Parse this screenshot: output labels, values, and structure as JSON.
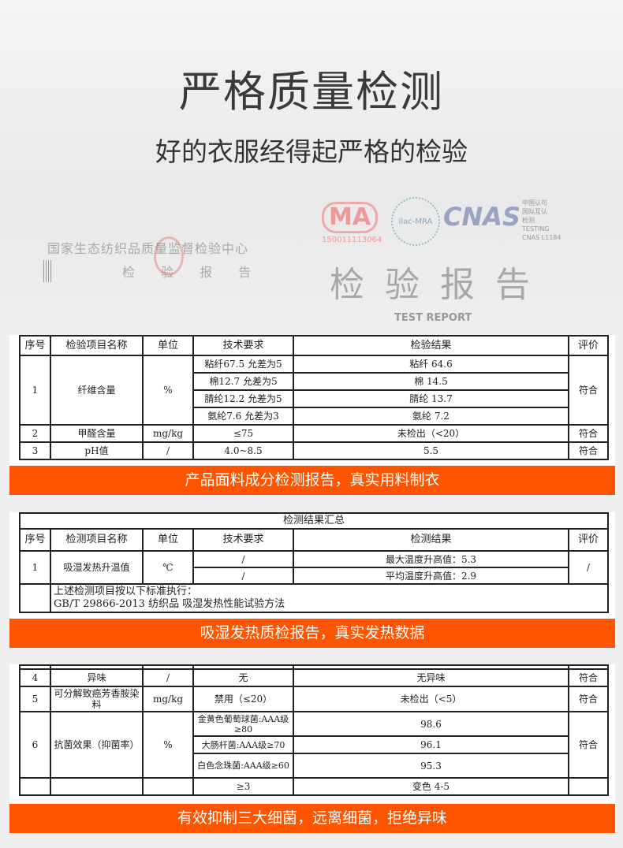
{
  "hero": {
    "title": "严格质量检测",
    "subtitle": "好的衣服经得起严格的检验",
    "center_name": "国家生态纺织品质量监督检验中心",
    "report_small": "检 验 报 告",
    "cma": "MA",
    "cma_number": "150011113064",
    "ilac": "ilac-MRA",
    "cnas": "CNAS",
    "cnas_side": [
      "中国认可",
      "国际互认",
      "检测",
      "TESTING",
      "CNAS L1184"
    ],
    "report_cn": "检验报告",
    "report_en": "TEST REPORT"
  },
  "panel1": {
    "headers": [
      "序号",
      "检验项目名称",
      "单位",
      "技术要求",
      "检验结果",
      "评价"
    ],
    "row1": {
      "no": "1",
      "item": "纤维含量",
      "unit": "%",
      "reqs": [
        "粘纤67.5 允差为5",
        "棉12.7 允差为5",
        "腈纶12.2 允差为5",
        "氨纶7.6 允差为3"
      ],
      "results": [
        "粘纤 64.6",
        "棉 14.5",
        "腈纶 13.7",
        "氨纶 7.2"
      ],
      "eval": "符合"
    },
    "row2": {
      "no": "2",
      "item": "甲醛含量",
      "unit": "mg/kg",
      "req": "≤75",
      "result": "未检出（<20）",
      "eval": "符合"
    },
    "row3": {
      "no": "3",
      "item": "pH值",
      "unit": "/",
      "req": "4.0~8.5",
      "result": "5.5",
      "eval": "符合"
    },
    "banner": "产品面料成分检测报告，真实用料制衣"
  },
  "panel2": {
    "caption": "检测结果汇总",
    "headers": [
      "序号",
      "检测项目名称",
      "单位",
      "技术要求",
      "检测结果",
      "评价"
    ],
    "row1": {
      "no": "1",
      "item": "吸湿发热升温值",
      "unit": "℃",
      "reqs": [
        "/",
        "/"
      ],
      "results": [
        "最大温度升高值：5.3",
        "平均温度升高值：2.9"
      ],
      "eval": "/"
    },
    "notes": [
      "上述检测项目按以下标准执行：",
      "GB/T 29866-2013 纺织品 吸湿发热性能试验方法"
    ],
    "banner": "吸湿发热质检报告，真实发热数据"
  },
  "panel3": {
    "row4": {
      "no": "4",
      "item": "异味",
      "unit": "/",
      "req": "无",
      "result": "无异味",
      "eval": "符合"
    },
    "row5": {
      "no": "5",
      "item": "可分解致癌芳香胺染料",
      "unit": "mg/kg",
      "req": "禁用（≤20）",
      "result": "未检出（<5）",
      "eval": "符合"
    },
    "row6": {
      "no": "6",
      "item": "抗菌效果（抑菌率）",
      "unit": "%",
      "reqs": [
        "金黄色葡萄球菌:AAA级≥80",
        "大肠杆菌:AAA级≥70",
        "白色念珠菌:AAA级≥60"
      ],
      "results": [
        "98.6",
        "96.1",
        "95.3"
      ],
      "eval": "符合"
    },
    "row7": {
      "req": "≥3",
      "result": "变色 4-5"
    },
    "banner": "有效抑制三大细菌，远离细菌，拒绝异味"
  }
}
